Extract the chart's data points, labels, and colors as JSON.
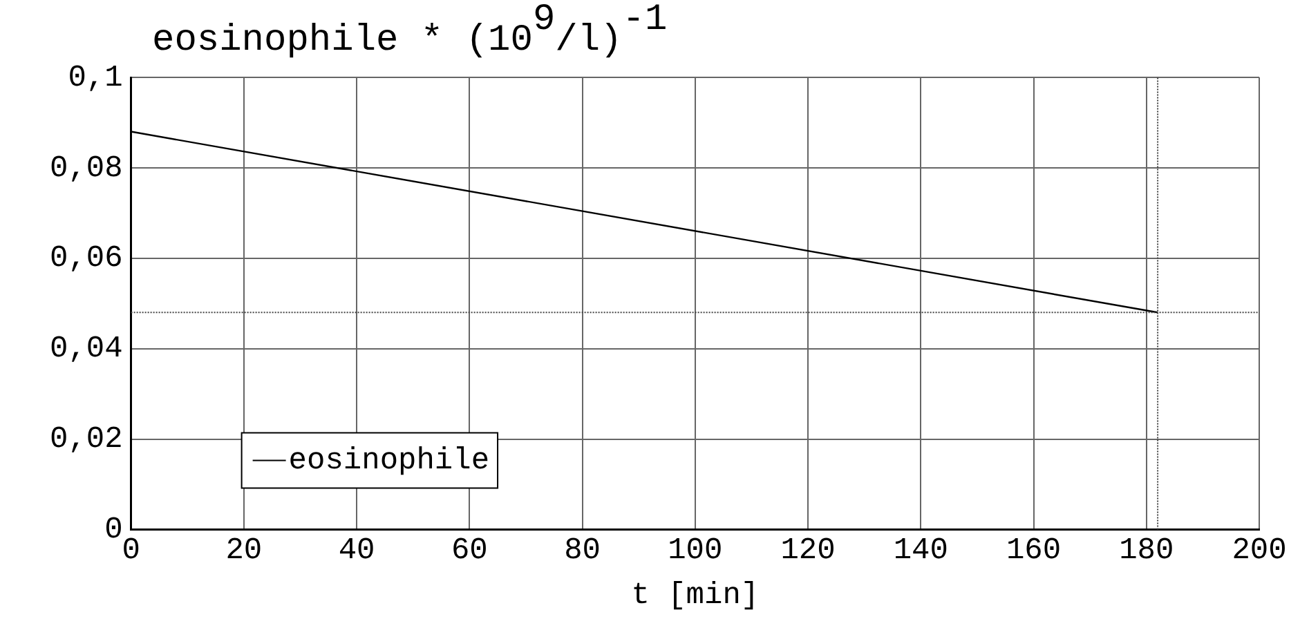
{
  "chart_data": {
    "type": "line",
    "title": "eosinophile * (10$^{9}$/l)$^{-1}$",
    "xlabel": "t [min]",
    "x": [
      0,
      182
    ],
    "series": [
      {
        "name": "eosinophile",
        "color": "#000000",
        "values": [
          0.088,
          0.048
        ]
      }
    ],
    "xlim": [
      0,
      200
    ],
    "xticks": [
      0,
      20,
      40,
      60,
      80,
      100,
      120,
      140,
      160,
      180,
      200
    ],
    "ylim": [
      0,
      0.1
    ],
    "yticks": [
      0,
      {
        "value": 0.02,
        "label": "0,02"
      },
      {
        "value": 0.04,
        "label": "0,04"
      },
      {
        "value": 0.06,
        "label": "0,06"
      },
      {
        "value": 0.08,
        "label": "0,08"
      },
      {
        "value": 0.1,
        "label": "0,1"
      }
    ],
    "ref_lines": [
      {
        "axis": "y",
        "value": 0.048,
        "color": "#444444",
        "line_style": "dotted"
      },
      {
        "axis": "x",
        "value": 182,
        "color": "#444444",
        "line_style": "dotted"
      }
    ],
    "grid": true,
    "legend": "bottom left",
    "marker": "none",
    "line_style": "solid"
  }
}
